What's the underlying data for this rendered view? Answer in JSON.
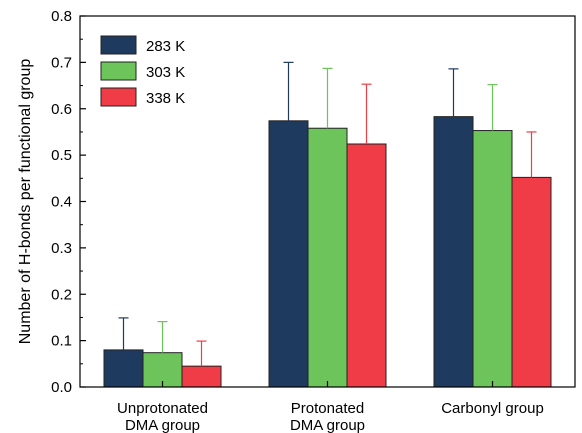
{
  "chart_data": {
    "type": "bar",
    "title": "",
    "xlabel": "",
    "ylabel": "Number of H-bonds per functional group",
    "ylim": [
      0,
      0.8
    ],
    "yticks": [
      "0.0",
      "0.1",
      "0.2",
      "0.3",
      "0.4",
      "0.5",
      "0.6",
      "0.7",
      "0.8"
    ],
    "categories": [
      [
        "Unprotonated",
        "DMA group"
      ],
      [
        "Protonated",
        "DMA group"
      ],
      [
        "Carbonyl group"
      ]
    ],
    "legend_position": "top-left",
    "grid": false,
    "series": [
      {
        "name": "283 K",
        "color": "#1f3a5f",
        "values": [
          0.08,
          0.574,
          0.583
        ],
        "errors": [
          0.069,
          0.126,
          0.103
        ]
      },
      {
        "name": "303 K",
        "color": "#6cc45a",
        "values": [
          0.074,
          0.558,
          0.553
        ],
        "errors": [
          0.067,
          0.129,
          0.099
        ]
      },
      {
        "name": "338 K",
        "color": "#f03c46",
        "values": [
          0.045,
          0.524,
          0.452
        ],
        "errors": [
          0.054,
          0.129,
          0.098
        ]
      }
    ]
  }
}
